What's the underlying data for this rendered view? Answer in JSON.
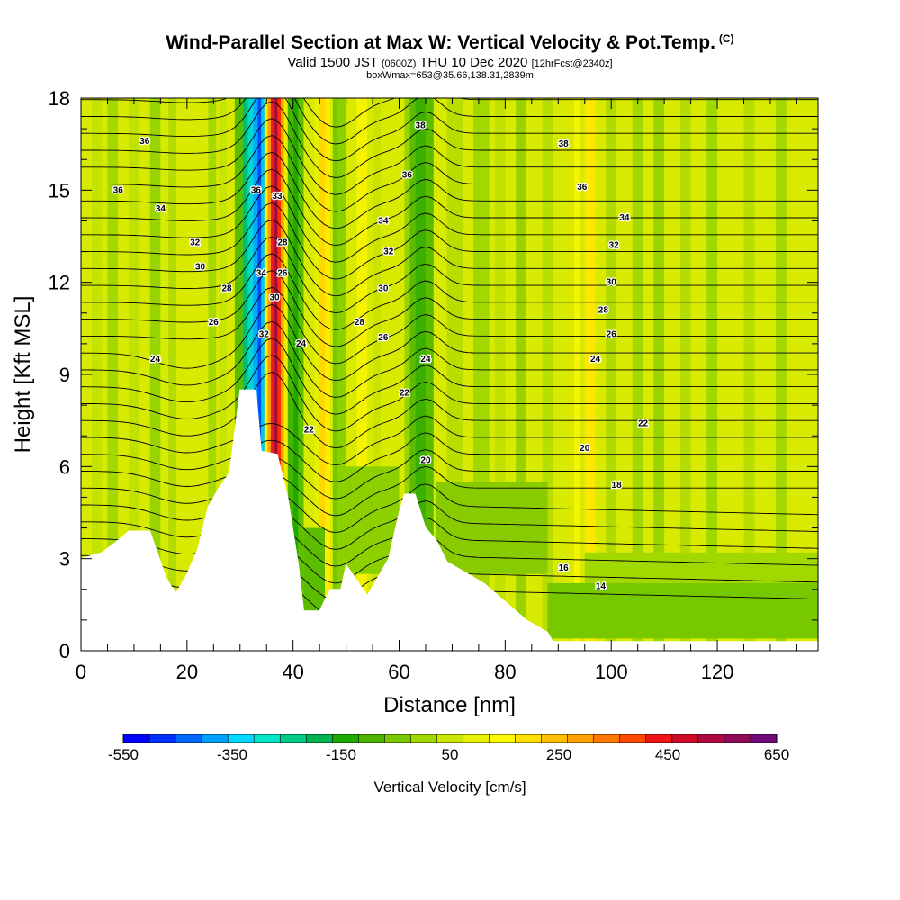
{
  "header": {
    "title": "Wind-Parallel Section at Max W: Vertical Velocity & Pot.Temp.",
    "copyright": "(C)",
    "valid_a": "Valid 1500 JST",
    "valid_z": "(0600Z)",
    "valid_b": "THU 10 Dec 2020",
    "forecast": "[12hrFcst@2340z]",
    "boxwmax": "boxWmax=653@35.66,138.31,2839m"
  },
  "chart_data": {
    "type": "heatmap",
    "xlabel": "Distance [nm]",
    "ylabel": "Height [Kft MSL]",
    "xlim": [
      0,
      139
    ],
    "ylim": [
      0,
      18
    ],
    "x_ticks": [
      0,
      20,
      40,
      60,
      80,
      100,
      120
    ],
    "y_ticks": [
      0,
      3,
      6,
      9,
      12,
      15,
      18
    ],
    "colorbar": {
      "label": "Vertical Velocity [cm/s]",
      "min": -550,
      "max": 650,
      "step": 50,
      "tick_labels": [
        "-550",
        "-350",
        "-150",
        "50",
        "250",
        "450",
        "650"
      ],
      "colors": [
        "#0000ff",
        "#0030ff",
        "#0068ff",
        "#00a0ff",
        "#00d8ff",
        "#00e6c8",
        "#00cc88",
        "#00b450",
        "#1eaa00",
        "#4cb400",
        "#78c800",
        "#a0d800",
        "#cae600",
        "#e6f000",
        "#fafa00",
        "#ffe000",
        "#ffc000",
        "#ffa000",
        "#ff7800",
        "#ff4800",
        "#f01414",
        "#d00a28",
        "#b00a40",
        "#900a5a",
        "#700a78"
      ]
    },
    "contour_field": "Potential Temperature",
    "contour_labels": [
      {
        "x": 12,
        "y": 16.6,
        "v": "36"
      },
      {
        "x": 7,
        "y": 15.0,
        "v": "36"
      },
      {
        "x": 15,
        "y": 14.4,
        "v": "34"
      },
      {
        "x": 21.5,
        "y": 13.3,
        "v": "32"
      },
      {
        "x": 22.5,
        "y": 12.5,
        "v": "30"
      },
      {
        "x": 27.5,
        "y": 11.8,
        "v": "28"
      },
      {
        "x": 25,
        "y": 10.7,
        "v": "26"
      },
      {
        "x": 14,
        "y": 9.5,
        "v": "24"
      },
      {
        "x": 33,
        "y": 15.0,
        "v": "36"
      },
      {
        "x": 37,
        "y": 14.8,
        "v": "33"
      },
      {
        "x": 38,
        "y": 13.3,
        "v": "28"
      },
      {
        "x": 34,
        "y": 12.3,
        "v": "34"
      },
      {
        "x": 38,
        "y": 12.3,
        "v": "26"
      },
      {
        "x": 36.5,
        "y": 11.5,
        "v": "30"
      },
      {
        "x": 34.5,
        "y": 10.3,
        "v": "32"
      },
      {
        "x": 41.5,
        "y": 10.0,
        "v": "24"
      },
      {
        "x": 43,
        "y": 7.2,
        "v": "22"
      },
      {
        "x": 64,
        "y": 17.1,
        "v": "38"
      },
      {
        "x": 61.5,
        "y": 15.5,
        "v": "36"
      },
      {
        "x": 57,
        "y": 14.0,
        "v": "34"
      },
      {
        "x": 58,
        "y": 13.0,
        "v": "32"
      },
      {
        "x": 57,
        "y": 11.8,
        "v": "30"
      },
      {
        "x": 52.5,
        "y": 10.7,
        "v": "28"
      },
      {
        "x": 57,
        "y": 10.2,
        "v": "26"
      },
      {
        "x": 65,
        "y": 9.5,
        "v": "24"
      },
      {
        "x": 61,
        "y": 8.4,
        "v": "22"
      },
      {
        "x": 65,
        "y": 6.2,
        "v": "20"
      },
      {
        "x": 91,
        "y": 16.5,
        "v": "38"
      },
      {
        "x": 94.5,
        "y": 15.1,
        "v": "36"
      },
      {
        "x": 102.5,
        "y": 14.1,
        "v": "34"
      },
      {
        "x": 100.5,
        "y": 13.2,
        "v": "32"
      },
      {
        "x": 100,
        "y": 12.0,
        "v": "30"
      },
      {
        "x": 98.5,
        "y": 11.1,
        "v": "28"
      },
      {
        "x": 100,
        "y": 10.3,
        "v": "26"
      },
      {
        "x": 97,
        "y": 9.5,
        "v": "24"
      },
      {
        "x": 106,
        "y": 7.4,
        "v": "22"
      },
      {
        "x": 95,
        "y": 6.6,
        "v": "20"
      },
      {
        "x": 101,
        "y": 5.4,
        "v": "18"
      },
      {
        "x": 91,
        "y": 2.7,
        "v": "16"
      },
      {
        "x": 98,
        "y": 2.1,
        "v": "14"
      }
    ]
  }
}
